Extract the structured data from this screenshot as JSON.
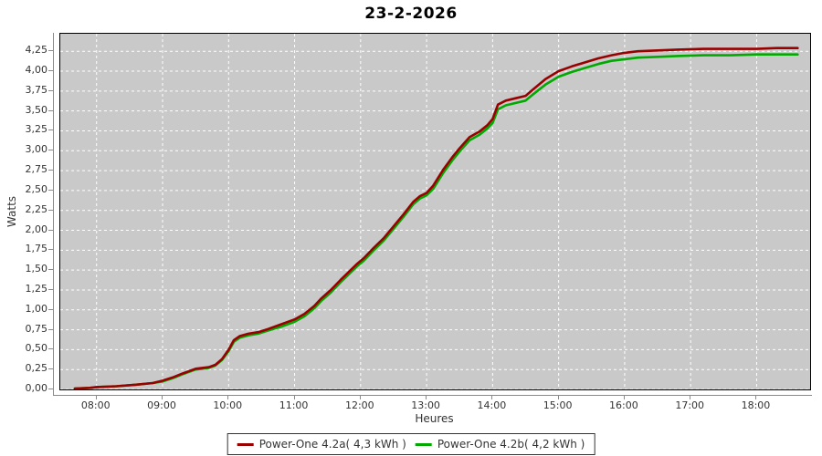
{
  "page": {
    "background": "#ffffff"
  },
  "chart_data": {
    "type": "line",
    "title": "23-2-2026",
    "xlabel": "Heures",
    "ylabel": "Watts",
    "plot_bg_color": "#c9c9c9",
    "grid_color": "#ffffff",
    "grid_style": "dashed",
    "legend_position": "bottom-center",
    "x_range": [
      7.45,
      18.81
    ],
    "y_range": [
      0,
      4.47
    ],
    "x_ticks": [
      {
        "value": 8,
        "label": "08:00"
      },
      {
        "value": 9,
        "label": "09:00"
      },
      {
        "value": 10,
        "label": "10:00"
      },
      {
        "value": 11,
        "label": "11:00"
      },
      {
        "value": 12,
        "label": "12:00"
      },
      {
        "value": 13,
        "label": "13:00"
      },
      {
        "value": 14,
        "label": "14:00"
      },
      {
        "value": 15,
        "label": "15:00"
      },
      {
        "value": 16,
        "label": "16:00"
      },
      {
        "value": 17,
        "label": "17:00"
      },
      {
        "value": 18,
        "label": "18:00"
      }
    ],
    "y_ticks": [
      {
        "value": 0.0,
        "label": "0,00"
      },
      {
        "value": 0.25,
        "label": "0,25"
      },
      {
        "value": 0.5,
        "label": "0,50"
      },
      {
        "value": 0.75,
        "label": "0,75"
      },
      {
        "value": 1.0,
        "label": "1,00"
      },
      {
        "value": 1.25,
        "label": "1,25"
      },
      {
        "value": 1.5,
        "label": "1,50"
      },
      {
        "value": 1.75,
        "label": "1,75"
      },
      {
        "value": 2.0,
        "label": "2,00"
      },
      {
        "value": 2.25,
        "label": "2,25"
      },
      {
        "value": 2.5,
        "label": "2,50"
      },
      {
        "value": 2.75,
        "label": "2,75"
      },
      {
        "value": 3.0,
        "label": "3,00"
      },
      {
        "value": 3.25,
        "label": "3,25"
      },
      {
        "value": 3.5,
        "label": "3,50"
      },
      {
        "value": 3.75,
        "label": "3,75"
      },
      {
        "value": 4.0,
        "label": "4,00"
      },
      {
        "value": 4.25,
        "label": "4,25"
      }
    ],
    "series": [
      {
        "name": "Power-One 4.2a( 4,3 kWh )",
        "color": "#990000",
        "total_kwh": "4,3",
        "points": [
          [
            7.67,
            0.01
          ],
          [
            7.9,
            0.02
          ],
          [
            8.0,
            0.03
          ],
          [
            8.3,
            0.04
          ],
          [
            8.6,
            0.06
          ],
          [
            8.85,
            0.08
          ],
          [
            9.0,
            0.11
          ],
          [
            9.15,
            0.15
          ],
          [
            9.3,
            0.2
          ],
          [
            9.5,
            0.26
          ],
          [
            9.7,
            0.28
          ],
          [
            9.8,
            0.31
          ],
          [
            9.9,
            0.38
          ],
          [
            10.0,
            0.5
          ],
          [
            10.08,
            0.62
          ],
          [
            10.17,
            0.67
          ],
          [
            10.3,
            0.7
          ],
          [
            10.45,
            0.72
          ],
          [
            10.6,
            0.76
          ],
          [
            10.8,
            0.82
          ],
          [
            11.0,
            0.88
          ],
          [
            11.15,
            0.95
          ],
          [
            11.3,
            1.05
          ],
          [
            11.4,
            1.14
          ],
          [
            11.55,
            1.25
          ],
          [
            11.7,
            1.38
          ],
          [
            11.85,
            1.5
          ],
          [
            11.95,
            1.58
          ],
          [
            12.05,
            1.65
          ],
          [
            12.2,
            1.78
          ],
          [
            12.35,
            1.9
          ],
          [
            12.5,
            2.05
          ],
          [
            12.65,
            2.2
          ],
          [
            12.8,
            2.36
          ],
          [
            12.9,
            2.43
          ],
          [
            13.0,
            2.47
          ],
          [
            13.1,
            2.56
          ],
          [
            13.25,
            2.76
          ],
          [
            13.4,
            2.93
          ],
          [
            13.5,
            3.03
          ],
          [
            13.65,
            3.17
          ],
          [
            13.8,
            3.24
          ],
          [
            13.92,
            3.32
          ],
          [
            14.0,
            3.4
          ],
          [
            14.08,
            3.58
          ],
          [
            14.2,
            3.63
          ],
          [
            14.35,
            3.66
          ],
          [
            14.5,
            3.69
          ],
          [
            14.6,
            3.76
          ],
          [
            14.8,
            3.9
          ],
          [
            15.0,
            4.0
          ],
          [
            15.2,
            4.06
          ],
          [
            15.4,
            4.11
          ],
          [
            15.6,
            4.16
          ],
          [
            15.8,
            4.2
          ],
          [
            16.0,
            4.23
          ],
          [
            16.2,
            4.25
          ],
          [
            16.5,
            4.26
          ],
          [
            16.8,
            4.27
          ],
          [
            17.2,
            4.28
          ],
          [
            17.6,
            4.28
          ],
          [
            18.0,
            4.28
          ],
          [
            18.3,
            4.29
          ],
          [
            18.62,
            4.29
          ]
        ]
      },
      {
        "name": "Power-One 4.2b( 4,2 kWh )",
        "color": "#00aa00",
        "total_kwh": "4,2",
        "points": [
          [
            7.67,
            0.01
          ],
          [
            7.9,
            0.02
          ],
          [
            8.0,
            0.03
          ],
          [
            8.3,
            0.04
          ],
          [
            8.6,
            0.06
          ],
          [
            8.85,
            0.08
          ],
          [
            9.0,
            0.1
          ],
          [
            9.15,
            0.14
          ],
          [
            9.3,
            0.19
          ],
          [
            9.5,
            0.25
          ],
          [
            9.7,
            0.27
          ],
          [
            9.8,
            0.3
          ],
          [
            9.9,
            0.37
          ],
          [
            10.0,
            0.48
          ],
          [
            10.08,
            0.6
          ],
          [
            10.17,
            0.65
          ],
          [
            10.3,
            0.68
          ],
          [
            10.45,
            0.7
          ],
          [
            10.6,
            0.74
          ],
          [
            10.8,
            0.79
          ],
          [
            11.0,
            0.85
          ],
          [
            11.15,
            0.92
          ],
          [
            11.3,
            1.02
          ],
          [
            11.4,
            1.11
          ],
          [
            11.55,
            1.22
          ],
          [
            11.7,
            1.35
          ],
          [
            11.85,
            1.47
          ],
          [
            11.95,
            1.55
          ],
          [
            12.05,
            1.62
          ],
          [
            12.2,
            1.75
          ],
          [
            12.35,
            1.87
          ],
          [
            12.5,
            2.02
          ],
          [
            12.65,
            2.17
          ],
          [
            12.8,
            2.33
          ],
          [
            12.9,
            2.4
          ],
          [
            13.0,
            2.44
          ],
          [
            13.1,
            2.52
          ],
          [
            13.25,
            2.72
          ],
          [
            13.4,
            2.89
          ],
          [
            13.5,
            2.99
          ],
          [
            13.65,
            3.13
          ],
          [
            13.8,
            3.2
          ],
          [
            13.92,
            3.28
          ],
          [
            14.0,
            3.35
          ],
          [
            14.08,
            3.52
          ],
          [
            14.2,
            3.57
          ],
          [
            14.35,
            3.6
          ],
          [
            14.5,
            3.63
          ],
          [
            14.6,
            3.7
          ],
          [
            14.8,
            3.83
          ],
          [
            15.0,
            3.93
          ],
          [
            15.2,
            3.99
          ],
          [
            15.4,
            4.04
          ],
          [
            15.6,
            4.09
          ],
          [
            15.8,
            4.13
          ],
          [
            16.0,
            4.15
          ],
          [
            16.2,
            4.17
          ],
          [
            16.5,
            4.18
          ],
          [
            16.8,
            4.19
          ],
          [
            17.2,
            4.2
          ],
          [
            17.6,
            4.2
          ],
          [
            18.0,
            4.21
          ],
          [
            18.3,
            4.21
          ],
          [
            18.62,
            4.21
          ]
        ]
      }
    ]
  }
}
